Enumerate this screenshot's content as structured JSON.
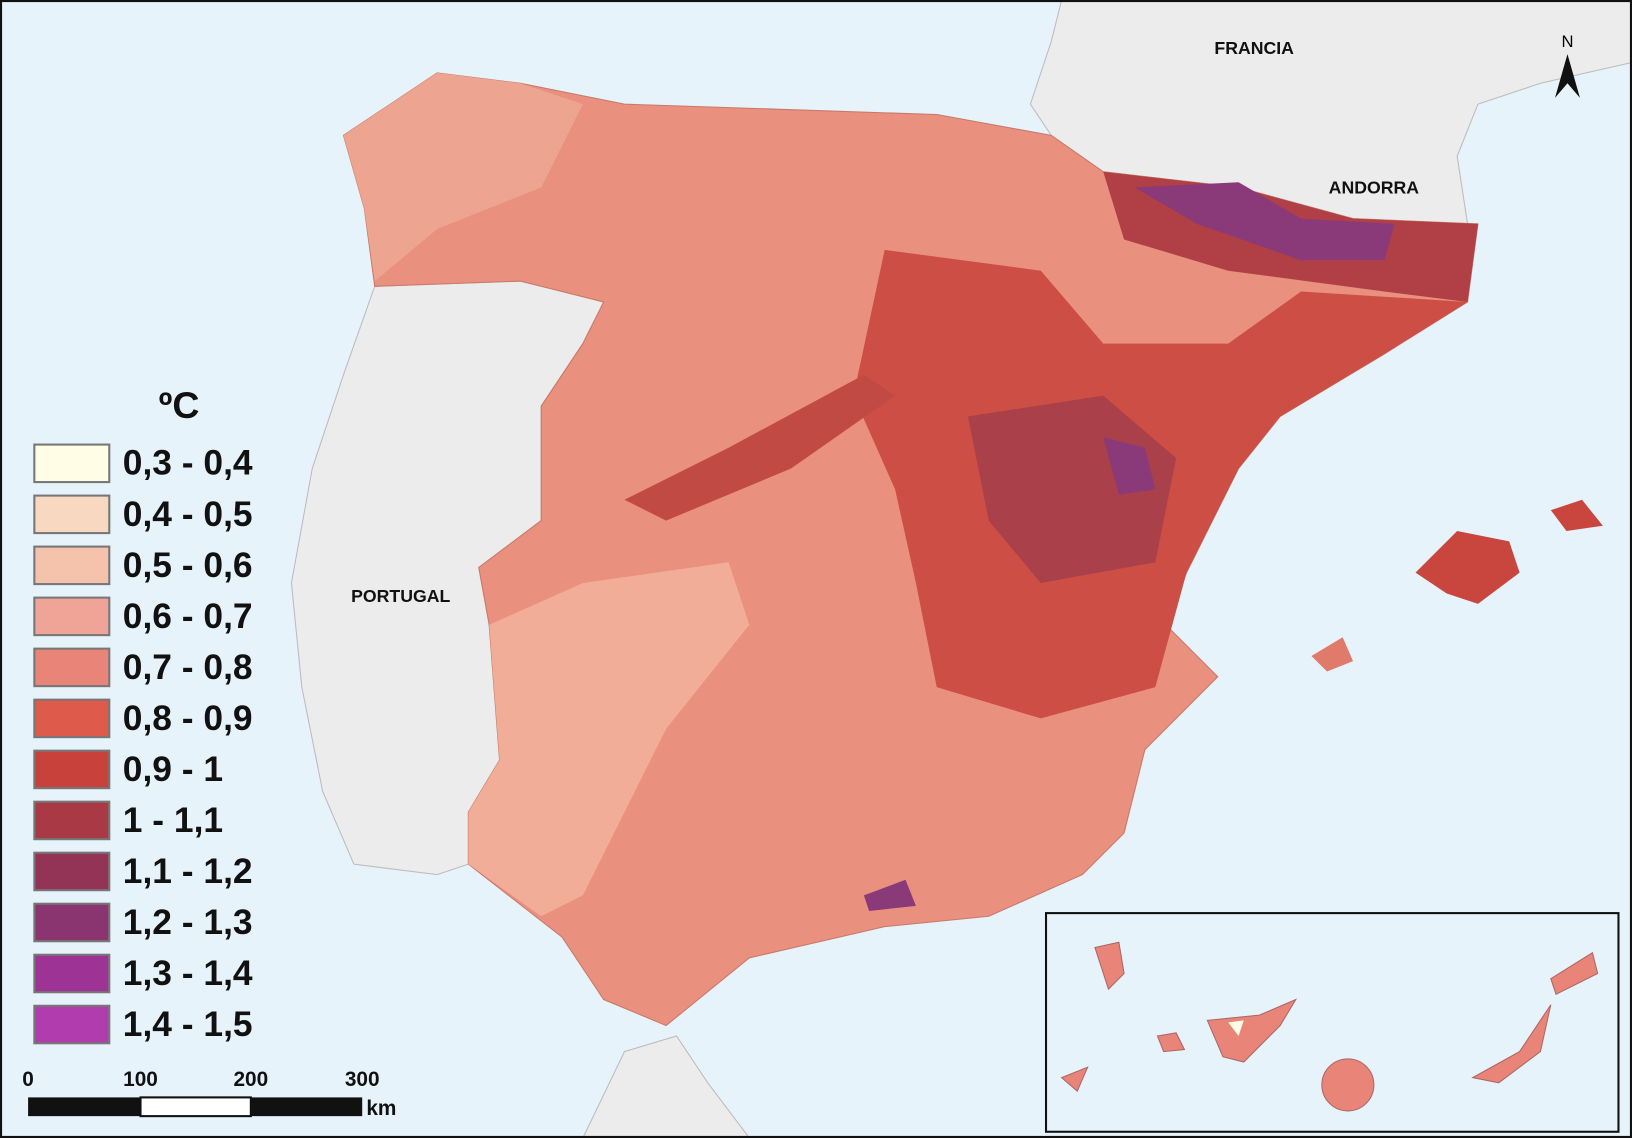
{
  "legend": {
    "title": "ºC",
    "items": [
      {
        "label": "0,3 - 0,4",
        "color": "#fffde6"
      },
      {
        "label": "0,4 - 0,5",
        "color": "#f9d8c2"
      },
      {
        "label": "0,5 - 0,6",
        "color": "#f5c2ab"
      },
      {
        "label": "0,6 - 0,7",
        "color": "#f0a498"
      },
      {
        "label": "0,7 - 0,8",
        "color": "#e98479"
      },
      {
        "label": "0,8 - 0,9",
        "color": "#de5a4b"
      },
      {
        "label": "0,9 - 1",
        "color": "#c9413b"
      },
      {
        "label": "1 - 1,1",
        "color": "#a93a45"
      },
      {
        "label": "1,1 - 1,2",
        "color": "#933457"
      },
      {
        "label": "1,2 - 1,3",
        "color": "#8a356f"
      },
      {
        "label": "1,3 - 1,4",
        "color": "#9c3395"
      },
      {
        "label": "1,4 - 1,5",
        "color": "#b03cad"
      }
    ]
  },
  "labels": {
    "france": "FRANCIA",
    "andorra": "ANDORRA",
    "portugal": "PORTUGAL"
  },
  "north_arrow": "N",
  "scale_bar": {
    "ticks": [
      "0",
      "100",
      "200",
      "300"
    ],
    "unit": "km"
  }
}
